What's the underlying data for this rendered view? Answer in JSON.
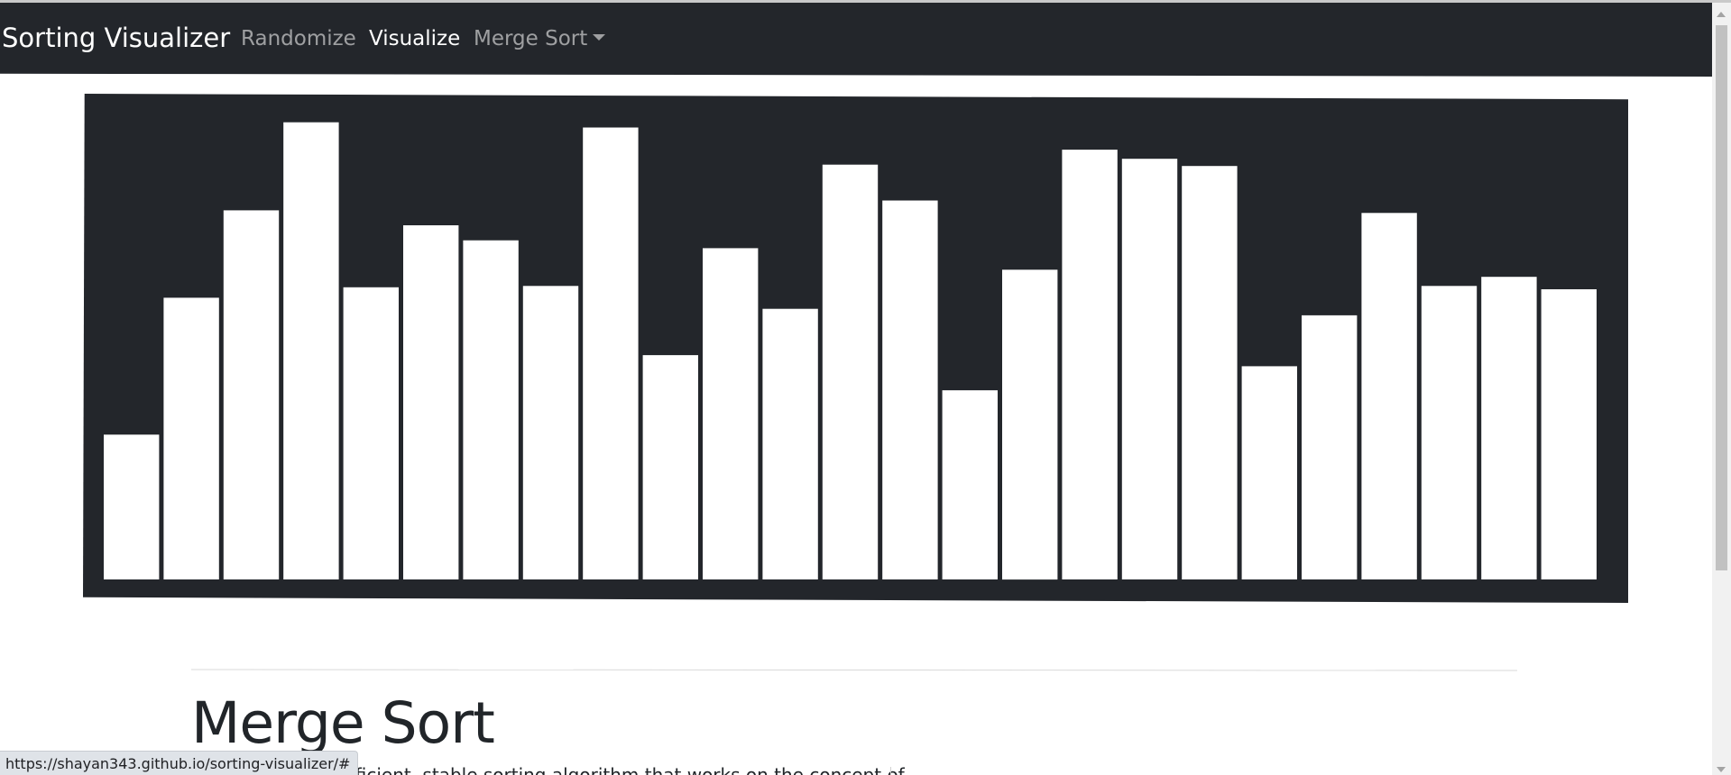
{
  "navbar": {
    "brand": "Sorting Visualizer",
    "links": {
      "randomize": "Randomize",
      "visualize": "Visualize",
      "algorithm": "Merge Sort"
    }
  },
  "chart_data": {
    "type": "bar",
    "values": [
      222,
      432,
      566,
      701,
      448,
      543,
      520,
      450,
      693,
      344,
      508,
      415,
      636,
      581,
      290,
      475,
      659,
      645,
      634,
      327,
      405,
      562,
      450,
      464,
      445
    ],
    "ylim": [
      0,
      760
    ],
    "colors": {
      "background": "#23262b",
      "bar": "#ffffff"
    }
  },
  "content": {
    "heading": "Merge Sort",
    "paragraph_visible": "fficient, stable sorting algorithm that works on the concept of"
  },
  "status_bar": {
    "url": "https://shayan343.github.io/sorting-visualizer/#"
  }
}
